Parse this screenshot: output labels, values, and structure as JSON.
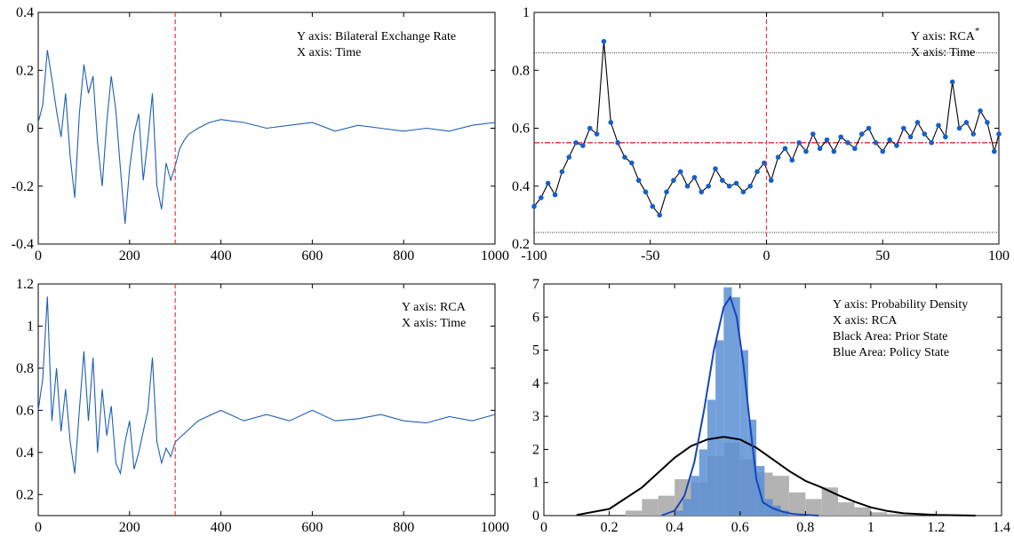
{
  "chart_data": [
    {
      "id": "p1",
      "type": "line",
      "annotations": [
        "Y axis: Bilateral Exchange Rate",
        "X axis: Time"
      ],
      "xlim": [
        0,
        1000
      ],
      "ylim": [
        -0.4,
        0.4
      ],
      "xticks": [
        0,
        200,
        400,
        600,
        800,
        1000
      ],
      "yticks": [
        -0.4,
        -0.2,
        0,
        0.2,
        0.4
      ],
      "xtick_labels": [
        "0",
        "200",
        "400",
        "600",
        "800",
        "1000"
      ],
      "ytick_labels": [
        "-0.4",
        "-0.2",
        "0",
        "0.2",
        "0.4"
      ],
      "vline_x": 300,
      "series": [
        {
          "color": "#1f5fb4",
          "x": [
            0,
            10,
            20,
            30,
            40,
            50,
            60,
            70,
            80,
            90,
            100,
            110,
            120,
            130,
            140,
            150,
            160,
            170,
            180,
            190,
            200,
            210,
            220,
            230,
            240,
            250,
            260,
            270,
            280,
            290,
            300,
            310,
            320,
            330,
            340,
            350,
            375,
            400,
            450,
            500,
            550,
            600,
            650,
            700,
            750,
            800,
            850,
            900,
            950,
            1000
          ],
          "y": [
            0.02,
            0.08,
            0.27,
            0.17,
            0.06,
            -0.03,
            0.12,
            -0.1,
            -0.24,
            0.05,
            0.22,
            0.12,
            0.18,
            -0.05,
            -0.2,
            0.02,
            0.18,
            0.06,
            -0.14,
            -0.33,
            -0.14,
            -0.02,
            0.05,
            -0.18,
            -0.04,
            0.12,
            -0.2,
            -0.28,
            -0.12,
            -0.18,
            -0.13,
            -0.07,
            -0.04,
            -0.02,
            -0.01,
            0.0,
            0.02,
            0.03,
            0.02,
            0.0,
            0.01,
            0.02,
            -0.01,
            0.01,
            0.0,
            -0.01,
            0.0,
            -0.01,
            0.01,
            0.02
          ]
        }
      ]
    },
    {
      "id": "p2",
      "type": "line",
      "annotations": [
        "Y axis: RCA",
        "X axis: Time"
      ],
      "superscript": "*",
      "xlim": [
        -100,
        100
      ],
      "ylim": [
        0.2,
        1.0
      ],
      "xticks": [
        -100,
        -50,
        0,
        50,
        100
      ],
      "yticks": [
        0.2,
        0.4,
        0.6,
        0.8,
        1.0
      ],
      "xtick_labels": [
        "-100",
        "-50",
        "0",
        "50",
        "100"
      ],
      "ytick_labels": [
        "0.2",
        "0.4",
        "0.6",
        "0.8",
        "1"
      ],
      "vline_x": 0,
      "hline_y": 0.55,
      "bound_lines_y": [
        0.86,
        0.24
      ],
      "series": [
        {
          "color": "#000000",
          "marker_color": "#1560c8",
          "x": [
            -100,
            -97,
            -94,
            -91,
            -88,
            -85,
            -82,
            -79,
            -76,
            -73,
            -70,
            -67,
            -64,
            -61,
            -58,
            -55,
            -52,
            -49,
            -46,
            -43,
            -40,
            -37,
            -34,
            -31,
            -28,
            -25,
            -22,
            -19,
            -16,
            -13,
            -10,
            -7,
            -4,
            -1,
            2,
            5,
            8,
            11,
            14,
            17,
            20,
            23,
            26,
            29,
            32,
            35,
            38,
            41,
            44,
            47,
            50,
            53,
            56,
            59,
            62,
            65,
            68,
            71,
            74,
            77,
            80,
            83,
            86,
            89,
            92,
            95,
            98,
            100
          ],
          "y": [
            0.33,
            0.36,
            0.41,
            0.37,
            0.45,
            0.5,
            0.55,
            0.54,
            0.6,
            0.58,
            0.9,
            0.62,
            0.55,
            0.5,
            0.48,
            0.42,
            0.38,
            0.33,
            0.3,
            0.38,
            0.42,
            0.45,
            0.4,
            0.43,
            0.38,
            0.4,
            0.46,
            0.42,
            0.4,
            0.41,
            0.38,
            0.4,
            0.45,
            0.48,
            0.42,
            0.5,
            0.53,
            0.49,
            0.55,
            0.52,
            0.58,
            0.53,
            0.56,
            0.52,
            0.57,
            0.55,
            0.53,
            0.58,
            0.6,
            0.55,
            0.52,
            0.56,
            0.54,
            0.6,
            0.57,
            0.62,
            0.58,
            0.55,
            0.61,
            0.57,
            0.76,
            0.6,
            0.62,
            0.58,
            0.66,
            0.62,
            0.52,
            0.58
          ]
        }
      ]
    },
    {
      "id": "p3",
      "type": "line",
      "annotations": [
        "Y axis: RCA",
        "X axis: Time"
      ],
      "xlim": [
        0,
        1000
      ],
      "ylim": [
        0.1,
        1.2
      ],
      "xticks": [
        0,
        200,
        400,
        600,
        800,
        1000
      ],
      "yticks": [
        0.2,
        0.4,
        0.6,
        0.8,
        1.0,
        1.2
      ],
      "xtick_labels": [
        "0",
        "200",
        "400",
        "600",
        "800",
        "1000"
      ],
      "ytick_labels": [
        "0.2",
        "0.4",
        "0.6",
        "0.8",
        "1",
        "1.2"
      ],
      "vline_x": 300,
      "series": [
        {
          "color": "#1f5fb4",
          "x": [
            0,
            10,
            20,
            30,
            40,
            50,
            60,
            70,
            80,
            90,
            100,
            110,
            120,
            130,
            140,
            150,
            160,
            170,
            180,
            190,
            200,
            210,
            220,
            230,
            240,
            250,
            260,
            270,
            280,
            290,
            300,
            350,
            400,
            450,
            500,
            550,
            600,
            650,
            700,
            750,
            800,
            850,
            900,
            950,
            1000
          ],
          "y": [
            0.6,
            0.75,
            1.14,
            0.55,
            0.8,
            0.5,
            0.7,
            0.45,
            0.3,
            0.6,
            0.88,
            0.55,
            0.85,
            0.4,
            0.7,
            0.48,
            0.62,
            0.35,
            0.3,
            0.45,
            0.55,
            0.32,
            0.4,
            0.5,
            0.6,
            0.85,
            0.45,
            0.35,
            0.42,
            0.38,
            0.45,
            0.55,
            0.6,
            0.55,
            0.58,
            0.55,
            0.6,
            0.55,
            0.56,
            0.58,
            0.55,
            0.54,
            0.57,
            0.55,
            0.58
          ]
        }
      ]
    },
    {
      "id": "p4",
      "type": "histogram_density",
      "annotations": [
        "Y axis: Probability Density",
        "X axis: RCA",
        "Black Area: Prior State",
        "Blue Area: Policy State"
      ],
      "xlim": [
        0,
        1.4
      ],
      "ylim": [
        0,
        7
      ],
      "xticks": [
        0,
        0.2,
        0.4,
        0.6,
        0.8,
        1.0,
        1.2,
        1.4
      ],
      "yticks": [
        0,
        1,
        2,
        3,
        4,
        5,
        6,
        7
      ],
      "xtick_labels": [
        "0",
        "0.2",
        "0.4",
        "0.6",
        "0.8",
        "1",
        "1.2",
        "1.4"
      ],
      "ytick_labels": [
        "0",
        "1",
        "2",
        "3",
        "4",
        "5",
        "6",
        "7"
      ],
      "prior_hist": {
        "color": "#b3b3b3",
        "bin_width": 0.05,
        "bins": [
          [
            0.25,
            0.15
          ],
          [
            0.3,
            0.5
          ],
          [
            0.35,
            0.6
          ],
          [
            0.4,
            1.1
          ],
          [
            0.45,
            1.0
          ],
          [
            0.5,
            1.8
          ],
          [
            0.55,
            2.2
          ],
          [
            0.6,
            1.7
          ],
          [
            0.65,
            1.3
          ],
          [
            0.7,
            1.2
          ],
          [
            0.75,
            0.7
          ],
          [
            0.8,
            0.5
          ],
          [
            0.85,
            0.85
          ],
          [
            0.9,
            0.4
          ],
          [
            0.95,
            0.25
          ],
          [
            1.0,
            0.1
          ],
          [
            1.05,
            0.05
          ]
        ]
      },
      "policy_hist": {
        "color": "#5b8fd3",
        "bin_width": 0.025,
        "bins": [
          [
            0.4,
            0.15
          ],
          [
            0.425,
            0.5
          ],
          [
            0.45,
            1.2
          ],
          [
            0.475,
            2.0
          ],
          [
            0.5,
            3.5
          ],
          [
            0.525,
            5.3
          ],
          [
            0.55,
            6.9
          ],
          [
            0.575,
            6.6
          ],
          [
            0.6,
            5.0
          ],
          [
            0.625,
            2.9
          ],
          [
            0.65,
            1.5
          ],
          [
            0.675,
            0.5
          ],
          [
            0.7,
            0.3
          ],
          [
            0.725,
            0.15
          ]
        ]
      },
      "prior_kde": {
        "color": "#000000",
        "x": [
          0.1,
          0.2,
          0.3,
          0.35,
          0.4,
          0.45,
          0.5,
          0.55,
          0.6,
          0.65,
          0.7,
          0.75,
          0.8,
          0.85,
          0.9,
          0.95,
          1.0,
          1.05,
          1.1,
          1.2,
          1.32
        ],
        "y": [
          0.02,
          0.2,
          0.85,
          1.3,
          1.75,
          2.1,
          2.3,
          2.38,
          2.3,
          2.05,
          1.7,
          1.35,
          1.05,
          0.85,
          0.62,
          0.42,
          0.25,
          0.14,
          0.07,
          0.02,
          0.0
        ]
      },
      "policy_kde": {
        "color": "#1546b8",
        "x": [
          0.36,
          0.4,
          0.43,
          0.46,
          0.49,
          0.52,
          0.55,
          0.57,
          0.59,
          0.61,
          0.63,
          0.65,
          0.67,
          0.7,
          0.73,
          0.76,
          0.8,
          0.84
        ],
        "y": [
          0.0,
          0.15,
          0.6,
          1.6,
          3.2,
          5.0,
          6.3,
          6.6,
          6.0,
          4.6,
          2.8,
          1.1,
          0.4,
          0.22,
          0.12,
          0.05,
          0.02,
          0.0
        ]
      }
    }
  ]
}
